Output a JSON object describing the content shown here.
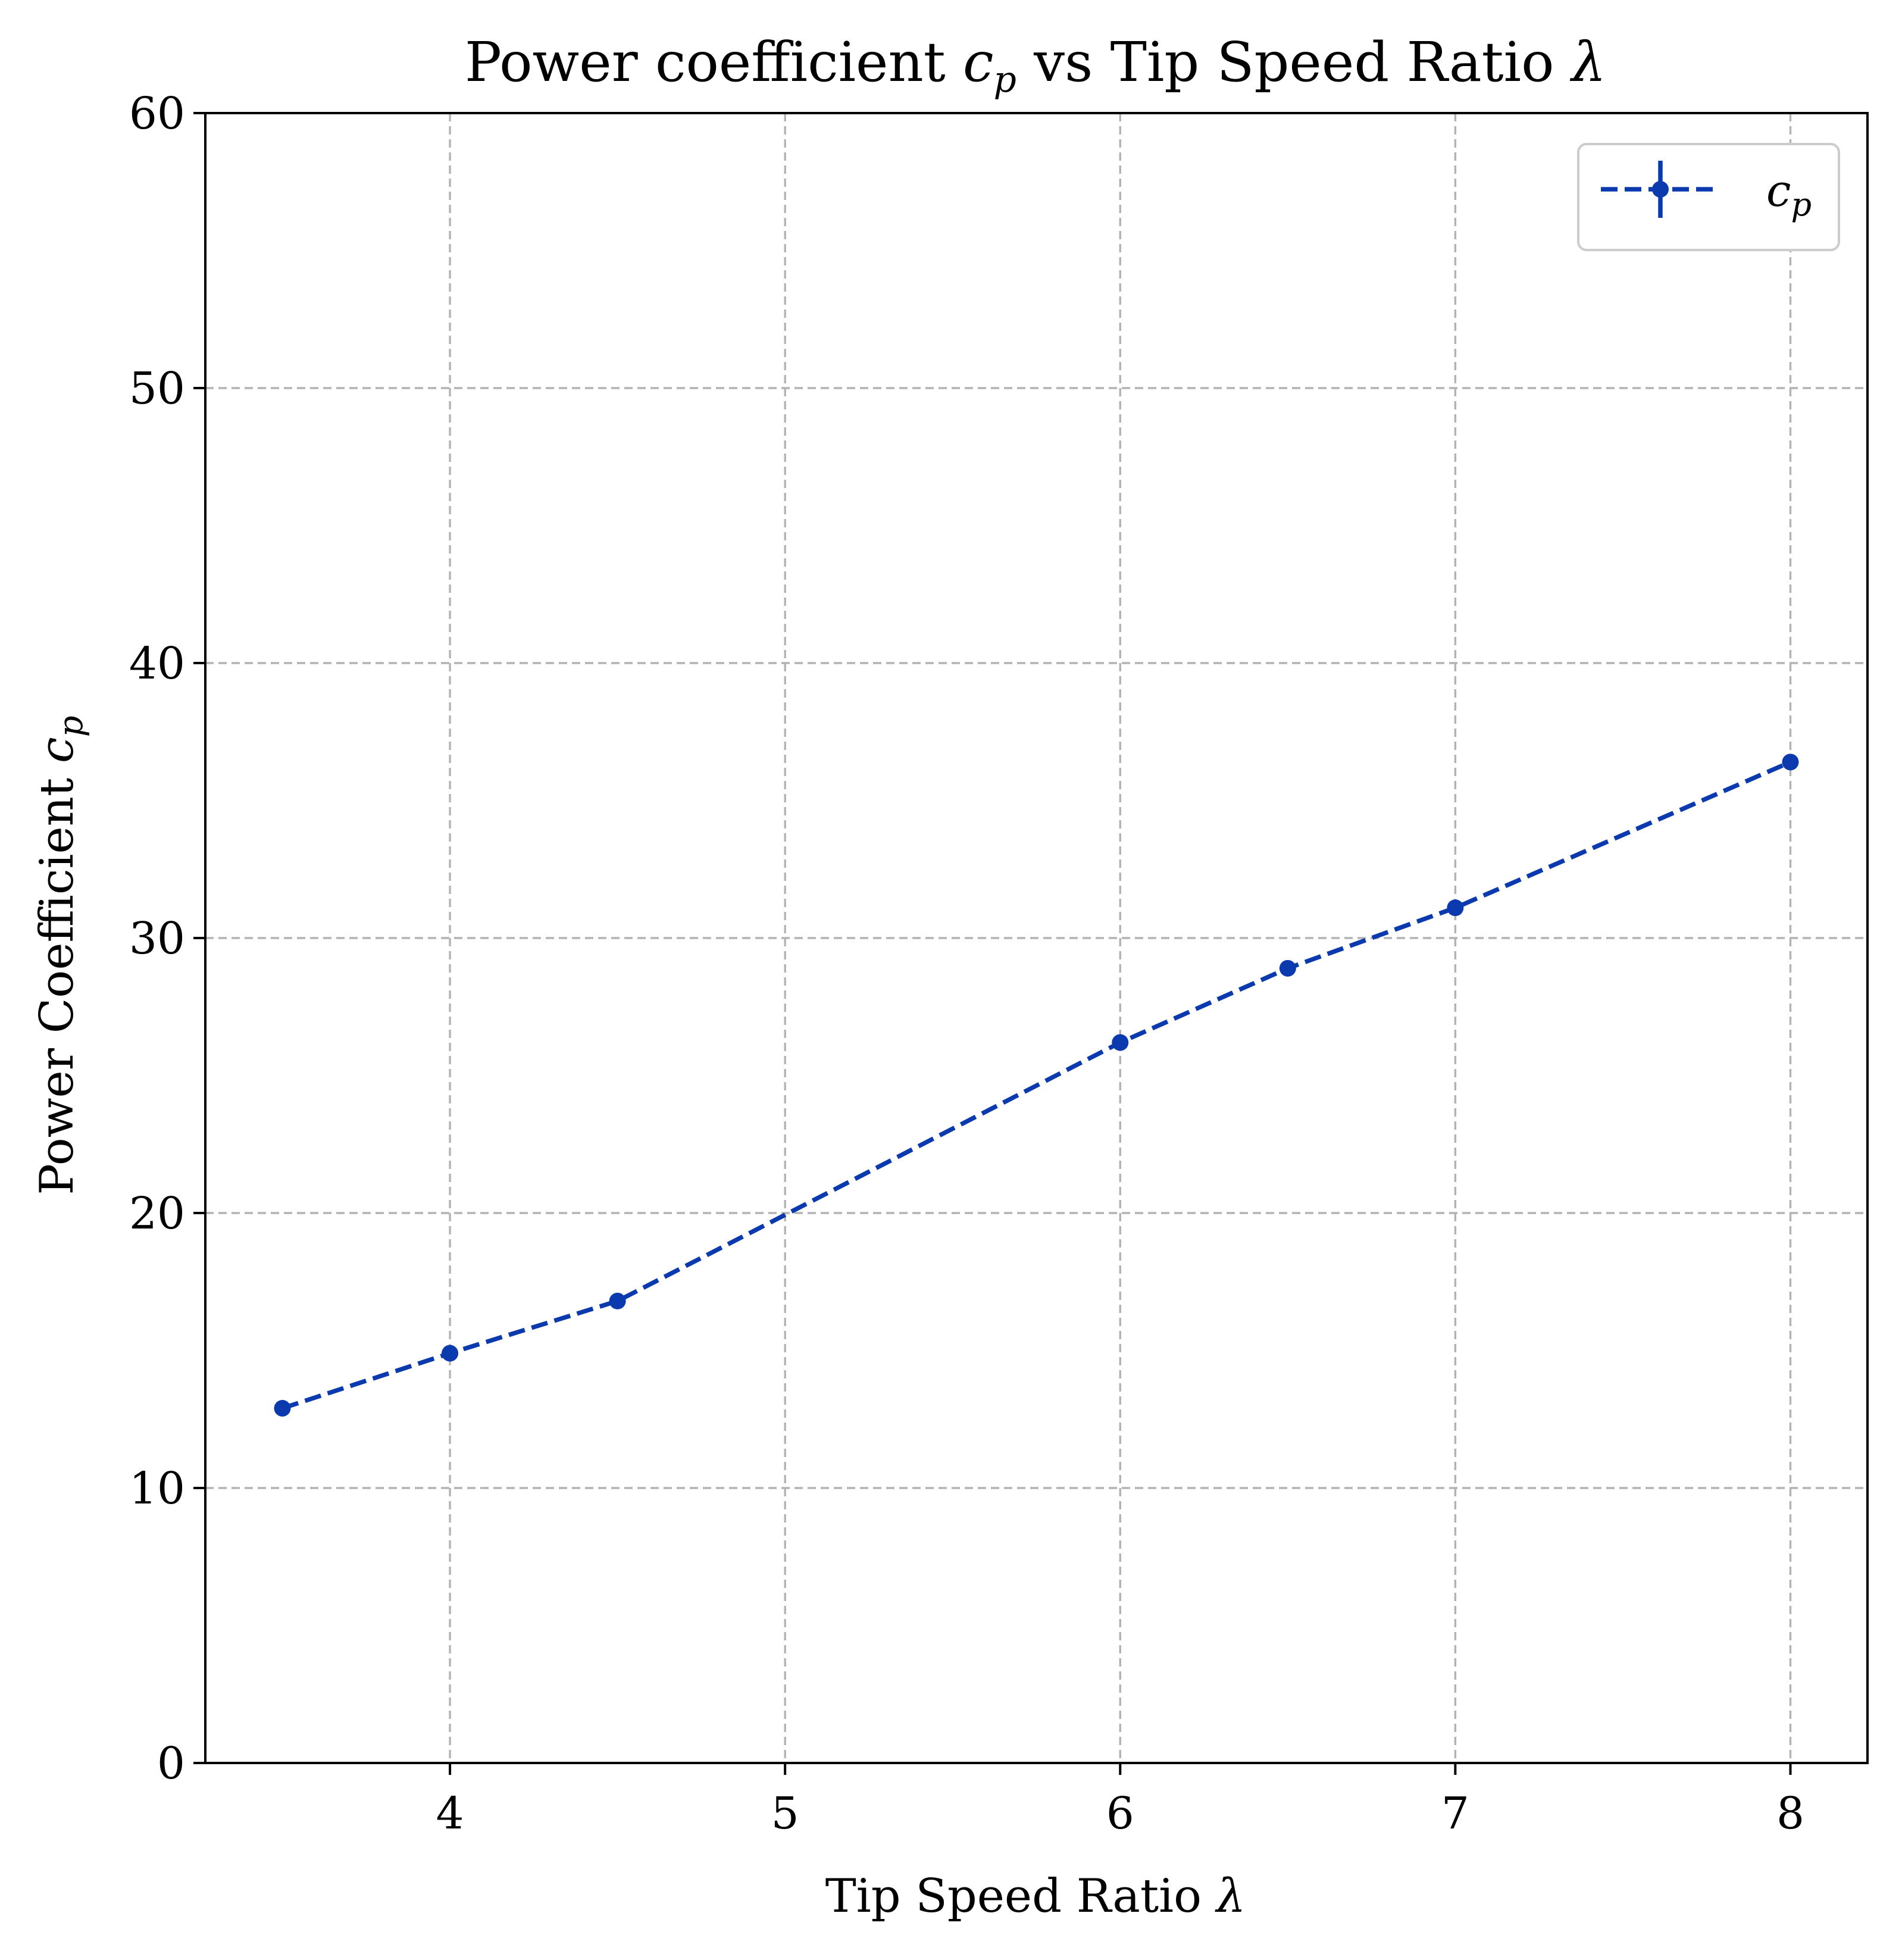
{
  "chart_data": {
    "type": "line",
    "title": "Power coefficient c_p vs Tip Speed Ratio λ",
    "title_parts": {
      "pre": "Power coefficient ",
      "sym": "c",
      "sub": "p",
      "post": " vs Tip Speed Ratio ",
      "lam": "λ"
    },
    "xlabel": "Tip Speed Ratio λ",
    "xlabel_parts": {
      "pre": "Tip Speed Ratio ",
      "lam": "λ"
    },
    "ylabel": "Power Coefficient c_p",
    "ylabel_parts": {
      "pre": "Power Coefficient ",
      "sym": "c",
      "sub": "p"
    },
    "xlim": [
      3.27,
      8.23
    ],
    "ylim": [
      0,
      60
    ],
    "xticks": [
      4,
      5,
      6,
      7,
      8
    ],
    "yticks": [
      0,
      10,
      20,
      30,
      40,
      50,
      60
    ],
    "grid": true,
    "legend_position": "top-right",
    "series": [
      {
        "name": "c_p",
        "legend_sym": "c",
        "legend_sub": "p",
        "color": "#0a3aad",
        "linestyle": "dashed",
        "marker": "circle",
        "x": [
          3.5,
          4.0,
          4.5,
          6.0,
          6.5,
          7.0,
          8.0
        ],
        "y": [
          12.9,
          14.9,
          16.8,
          26.2,
          28.9,
          31.1,
          36.4
        ]
      }
    ]
  }
}
